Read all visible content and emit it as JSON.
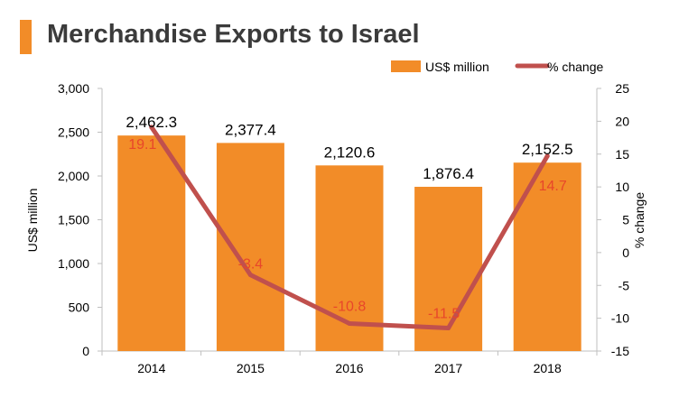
{
  "chart_data": {
    "type": "bar",
    "title": "Merchandise Exports to Israel",
    "categories": [
      "2014",
      "2015",
      "2016",
      "2017",
      "2018"
    ],
    "series": [
      {
        "name": "US$ million",
        "type": "bar",
        "axis": "left",
        "values": [
          2462.3,
          2377.4,
          2120.6,
          1876.4,
          2152.5
        ],
        "labels": [
          "2,462.3",
          "2,377.4",
          "2,120.6",
          "1,876.4",
          "2,152.5"
        ]
      },
      {
        "name": "% change",
        "type": "line",
        "axis": "right",
        "values": [
          19.1,
          -3.4,
          -10.8,
          -11.5,
          14.7
        ],
        "labels": [
          "19.1",
          "-3.4",
          "-10.8",
          "-11.5",
          "14.7"
        ]
      }
    ],
    "ylabel_left": "US$ million",
    "ylabel_right": "% change",
    "ylim_left": [
      0,
      3000
    ],
    "ylim_right": [
      -15,
      25
    ],
    "left_ticks": [
      "0",
      "500",
      "1,000",
      "1,500",
      "2,000",
      "2,500",
      "3,000"
    ],
    "right_ticks": [
      "-15",
      "-10",
      "-5",
      "0",
      "5",
      "10",
      "15",
      "20",
      "25"
    ],
    "legend": [
      "US$ million",
      "% change"
    ],
    "legend_position": "top-right",
    "grid": false,
    "colors": {
      "bar": "#f28c28",
      "line": "#c0504d",
      "accent": "#f28c28",
      "bar_label": "#000000",
      "line_label": "#e8462a"
    }
  }
}
